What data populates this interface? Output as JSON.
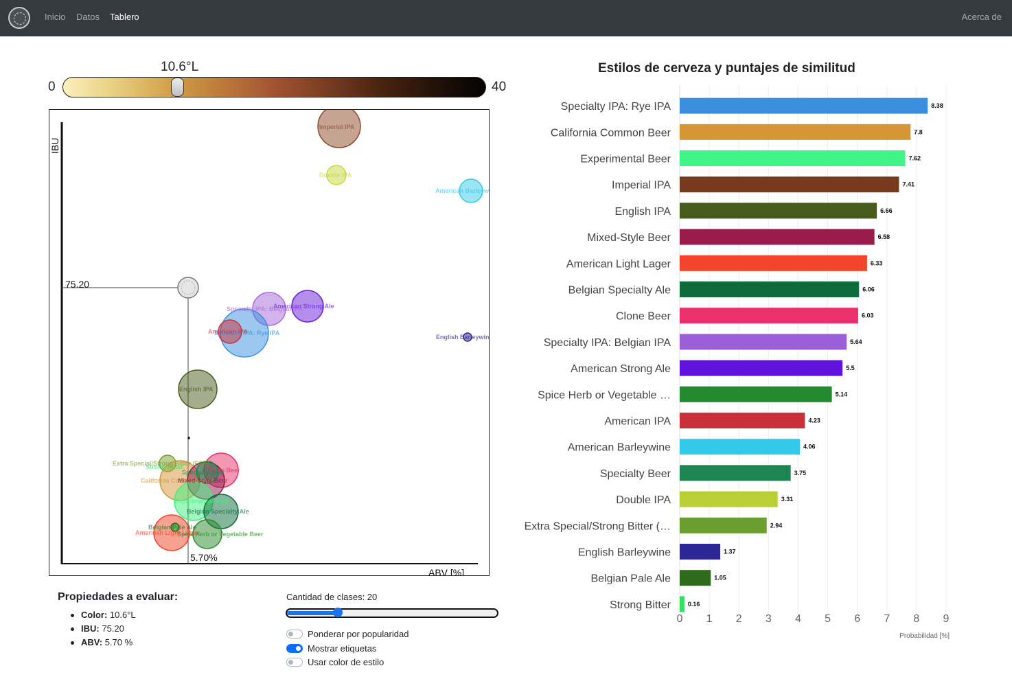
{
  "navbar": {
    "links": [
      {
        "label": "Inicio",
        "active": false
      },
      {
        "label": "Datos",
        "active": false
      },
      {
        "label": "Tablero",
        "active": true
      }
    ],
    "about": "Acerca de"
  },
  "color_slider": {
    "value_label": "10.6°L",
    "min_label": "0",
    "max_label": "40",
    "value": 10.6,
    "min": 0,
    "max": 40
  },
  "scatter": {
    "ylabel": "IBU",
    "xlabel": "ABV [%]",
    "target_ibu_label": "75.20",
    "target_abv_label": "5.70%",
    "points": [
      {
        "name": "Imperial IPA",
        "color": "#8b4a2a"
      },
      {
        "name": "Double IPA",
        "color": "#c8d83a"
      },
      {
        "name": "American Barleywine",
        "color": "#35c9e8"
      },
      {
        "name": "Specialty IPA: Belgian IPA",
        "color": "#a868d8"
      },
      {
        "name": "American Strong Ale",
        "color": "#6a1ed8"
      },
      {
        "name": "Specialty IPA: Rye IPA",
        "color": "#3a8fe0"
      },
      {
        "name": "American IPA",
        "color": "#c9303a"
      },
      {
        "name": "English Barleywine",
        "color": "#2a2590"
      },
      {
        "name": "English IPA",
        "color": "#4a5e1e"
      },
      {
        "name": "Extra Special/Strong Bitter (ESB)",
        "color": "#7a9e2e"
      },
      {
        "name": "Clone Beer",
        "color": "#e8306a"
      },
      {
        "name": "California Common Beer",
        "color": "#d4963a"
      },
      {
        "name": "Mixed-Style Beer",
        "color": "#8a1a4a"
      },
      {
        "name": "Specialty Beer",
        "color": "#1a8a50"
      },
      {
        "name": "Experimental Beer",
        "color": "#40f080"
      },
      {
        "name": "Belgian Specialty Ale",
        "color": "#0e6b3c"
      },
      {
        "name": "American Light Lager",
        "color": "#f04428"
      },
      {
        "name": "Spice Herb or Vegetable Beer",
        "color": "#2a8a2a"
      },
      {
        "name": "Belgian Pale Ale",
        "color": "#2f6b1a"
      },
      {
        "name": "Strong Bitter",
        "color": "#30e060"
      }
    ]
  },
  "properties": {
    "title": "Propiedades a evaluar:",
    "items": [
      {
        "key": "Color:",
        "value": "10.6°L"
      },
      {
        "key": "IBU:",
        "value": "75.20"
      },
      {
        "key": "ABV:",
        "value": "5.70 %"
      }
    ]
  },
  "controls": {
    "classes_label": "Cantidad de clases: 20",
    "classes_value": 20,
    "classes_min": 1,
    "classes_max": 80,
    "switches": [
      {
        "label": "Ponderar por popularidad",
        "on": false
      },
      {
        "label": "Mostrar etiquetas",
        "on": true
      },
      {
        "label": "Usar color de estilo",
        "on": false
      }
    ]
  },
  "chart_data": {
    "type": "bar",
    "orientation": "horizontal",
    "title": "Estilos de cerveza y puntajes de similitud",
    "xlabel": "Probabilidad [%]",
    "xlim": [
      0,
      9
    ],
    "xticks": [
      "0",
      "1",
      "2",
      "3",
      "4",
      "5",
      "6",
      "7",
      "8",
      "9"
    ],
    "grid": true,
    "categories": [
      "Specialty IPA: Rye IPA",
      "California Common Beer",
      "Experimental Beer",
      "Imperial IPA",
      "English IPA",
      "Mixed-Style Beer",
      "American Light Lager",
      "Belgian Specialty Ale",
      "Clone Beer",
      "Specialty IPA: Belgian IPA",
      "American Strong Ale",
      "Spice Herb or Vegetable …",
      "American IPA",
      "American Barleywine",
      "Specialty Beer",
      "Double IPA",
      "Extra Special/Strong Bitter (…",
      "English Barleywine",
      "Belgian Pale Ale",
      "Strong Bitter"
    ],
    "values": [
      8.38,
      7.8,
      7.62,
      7.41,
      6.66,
      6.58,
      6.33,
      6.06,
      6.03,
      5.64,
      5.5,
      5.14,
      4.23,
      4.06,
      3.75,
      3.31,
      2.94,
      1.37,
      1.05,
      0.16
    ],
    "value_labels": [
      "8.38",
      "7.8",
      "7.62",
      "7.41",
      "6.66",
      "6.58",
      "6.33",
      "6.06",
      "6.03",
      "5.64",
      "5.5",
      "5.14",
      "4.23",
      "4.06",
      "3.75",
      "3.31",
      "2.94",
      "1.37",
      "1.05",
      "0.16"
    ],
    "colors": [
      "#3b8edb",
      "#d59736",
      "#41f488",
      "#773a1d",
      "#475c1c",
      "#981c4c",
      "#f3452b",
      "#0e6b3c",
      "#ea306d",
      "#9b5fd8",
      "#6013dc",
      "#238a2f",
      "#c9303a",
      "#33c9ec",
      "#1d8550",
      "#b8cf36",
      "#6a9e2e",
      "#2d2695",
      "#2f6b1a",
      "#33e15e"
    ]
  }
}
